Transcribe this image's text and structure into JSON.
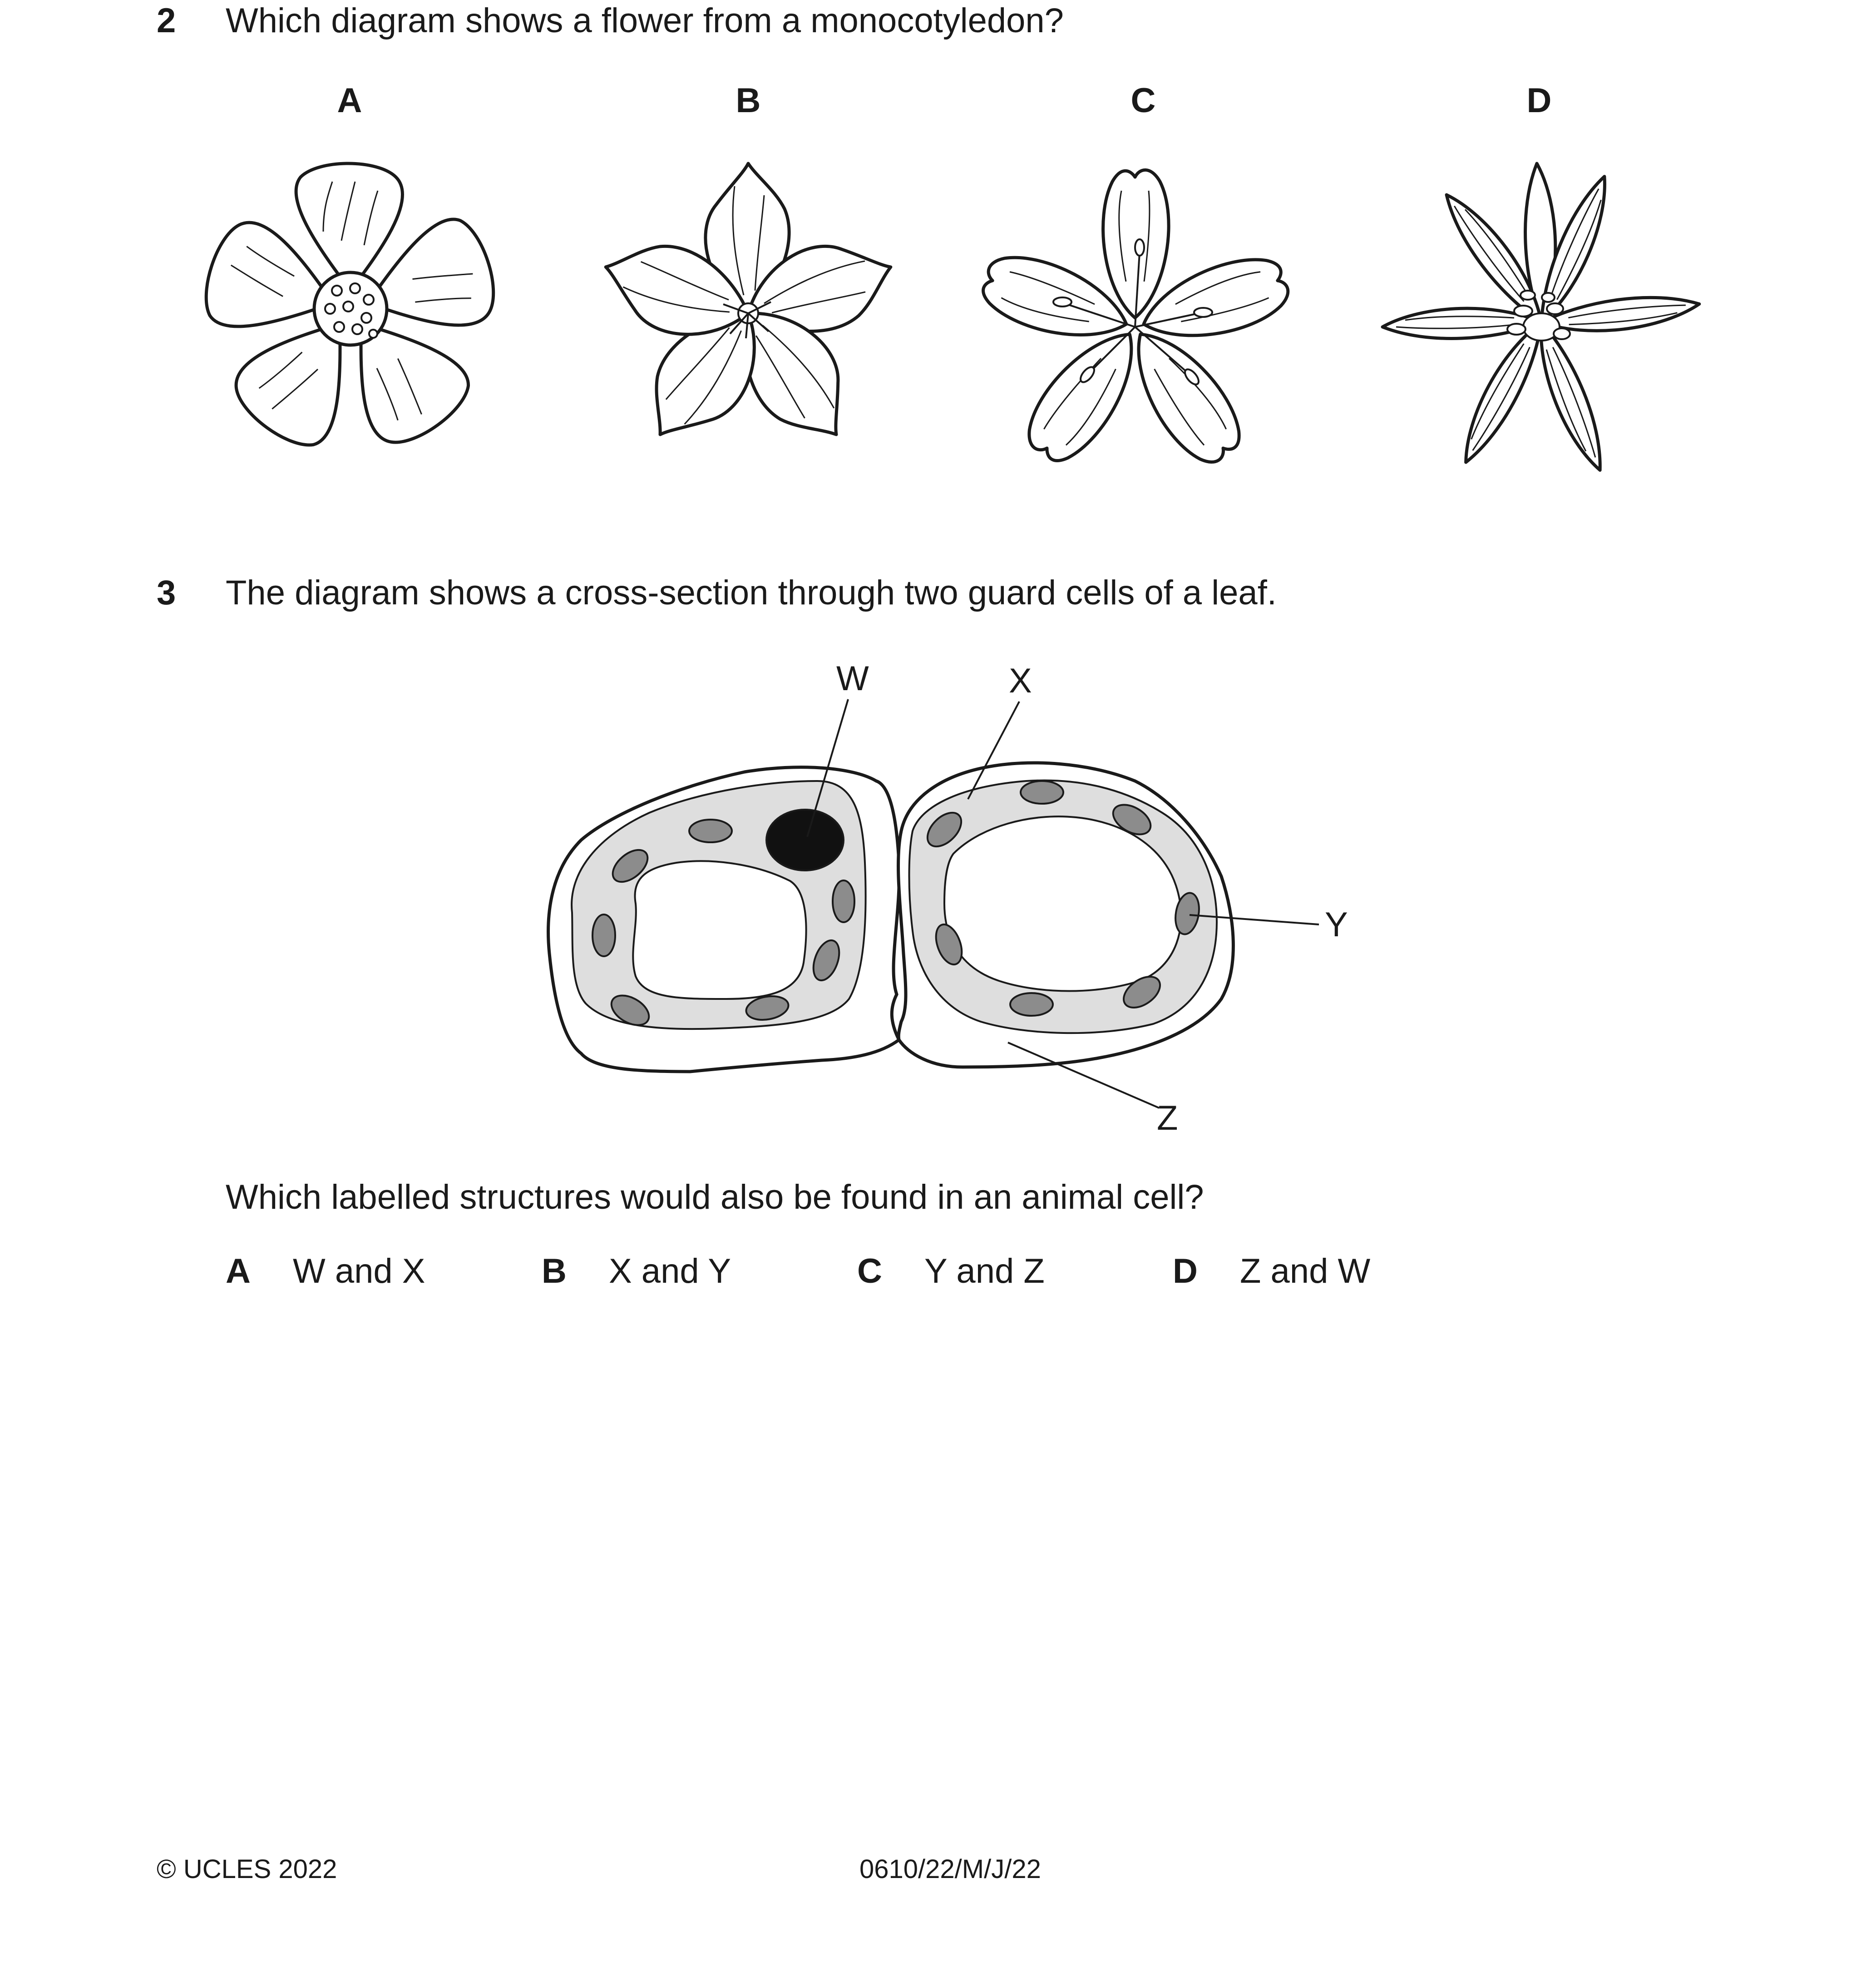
{
  "question2": {
    "number": "2",
    "text": "Which diagram shows a flower from a monocotyledon?",
    "flowers": [
      {
        "label": "A",
        "petals": 5,
        "centre": "dotted-disc"
      },
      {
        "label": "B",
        "petals": 5,
        "centre": "star-stamens"
      },
      {
        "label": "C",
        "petals": 5,
        "centre": "long-stamens"
      },
      {
        "label": "D",
        "petals": 6,
        "centre": "anthers-cluster"
      }
    ]
  },
  "question3": {
    "number": "3",
    "text": "The diagram shows a cross-section through two guard cells of a leaf.",
    "labels": {
      "w": "W",
      "x": "X",
      "y": "Y",
      "z": "Z"
    },
    "prompt": "Which labelled structures would also be found in an animal cell?",
    "options": [
      {
        "letter": "A",
        "text": "W and X"
      },
      {
        "letter": "B",
        "text": "X and Y"
      },
      {
        "letter": "C",
        "text": "Y and Z"
      },
      {
        "letter": "D",
        "text": "Z and W"
      }
    ],
    "colors": {
      "cytoplasm": "#dedede",
      "chloroplast": "#8c8c8c",
      "nucleus": "#111111"
    }
  },
  "footer": {
    "copyright": "© UCLES 2022",
    "code": "0610/22/M/J/22"
  }
}
